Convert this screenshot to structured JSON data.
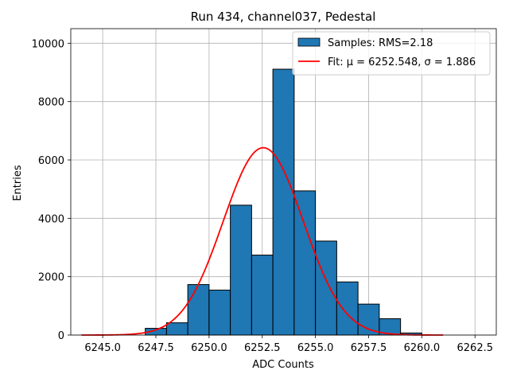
{
  "chart_data": {
    "type": "bar",
    "title": "Run 434, channel037, Pedestal",
    "xlabel": "ADC Counts",
    "ylabel": "Entries",
    "xlim": [
      6243.5,
      6263.5
    ],
    "ylim": [
      0,
      10500
    ],
    "xticks": [
      6245.0,
      6247.5,
      6250.0,
      6252.5,
      6255.0,
      6257.5,
      6260.0,
      6262.5
    ],
    "xtick_labels": [
      "6245.0",
      "6247.5",
      "6250.0",
      "6252.5",
      "6255.0",
      "6257.5",
      "6260.0",
      "6262.5"
    ],
    "yticks": [
      0,
      2000,
      4000,
      6000,
      8000,
      10000
    ],
    "ytick_labels": [
      "0",
      "2000",
      "4000",
      "6000",
      "8000",
      "10000"
    ],
    "grid": true,
    "legend_position": "top-right",
    "histogram": {
      "name": "Samples: RMS=2.18",
      "color": "#1f77b4",
      "edge_color": "#000000",
      "bin_edges": [
        6245.0,
        6246.0,
        6247.0,
        6248.0,
        6249.0,
        6250.0,
        6251.0,
        6252.0,
        6253.0,
        6254.0,
        6255.0,
        6256.0,
        6257.0,
        6258.0,
        6259.0,
        6260.0,
        6261.0,
        6262.0,
        6263.0
      ],
      "counts": [
        0,
        0,
        230,
        420,
        1730,
        1540,
        4450,
        2740,
        9110,
        4940,
        3220,
        1820,
        1060,
        560,
        70,
        0,
        0,
        0
      ]
    },
    "fit": {
      "name": "Fit: μ = 6252.548, σ = 1.886",
      "color": "#ff0000",
      "mu": 6252.548,
      "sigma": 1.886,
      "amplitude": 6420,
      "x_range": [
        6244,
        6261
      ]
    }
  }
}
